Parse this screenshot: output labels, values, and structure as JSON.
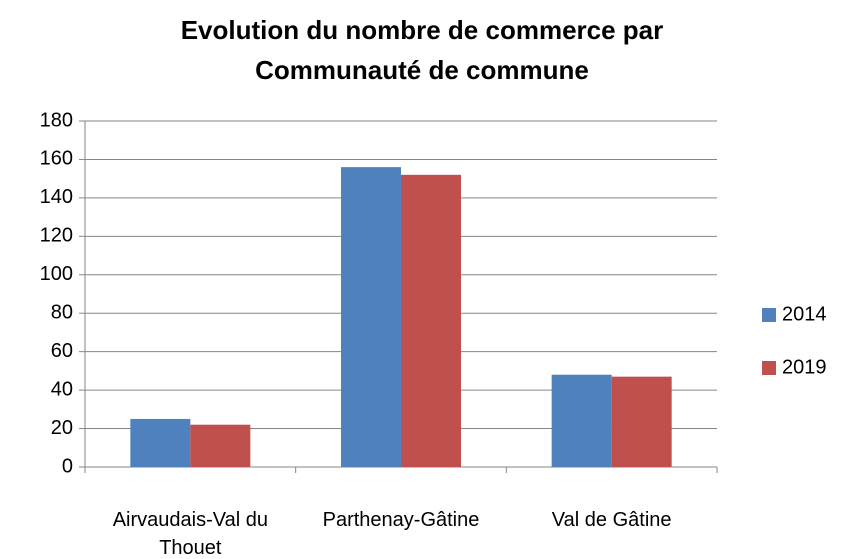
{
  "chart_data": {
    "type": "bar",
    "title": "Evolution du nombre de commerce par Communauté de commune",
    "categories": [
      "Airvaudais-Val du Thouet",
      "Parthenay-Gâtine",
      "Val de Gâtine"
    ],
    "series": [
      {
        "name": "2014",
        "color": "#4f81bd",
        "values": [
          25,
          156,
          48
        ]
      },
      {
        "name": "2019",
        "color": "#c0504d",
        "values": [
          22,
          152,
          47
        ]
      }
    ],
    "ylim": [
      0,
      180
    ],
    "yticks": [
      0,
      20,
      40,
      60,
      80,
      100,
      120,
      140,
      160,
      180
    ],
    "grid": true,
    "legend": "right"
  }
}
